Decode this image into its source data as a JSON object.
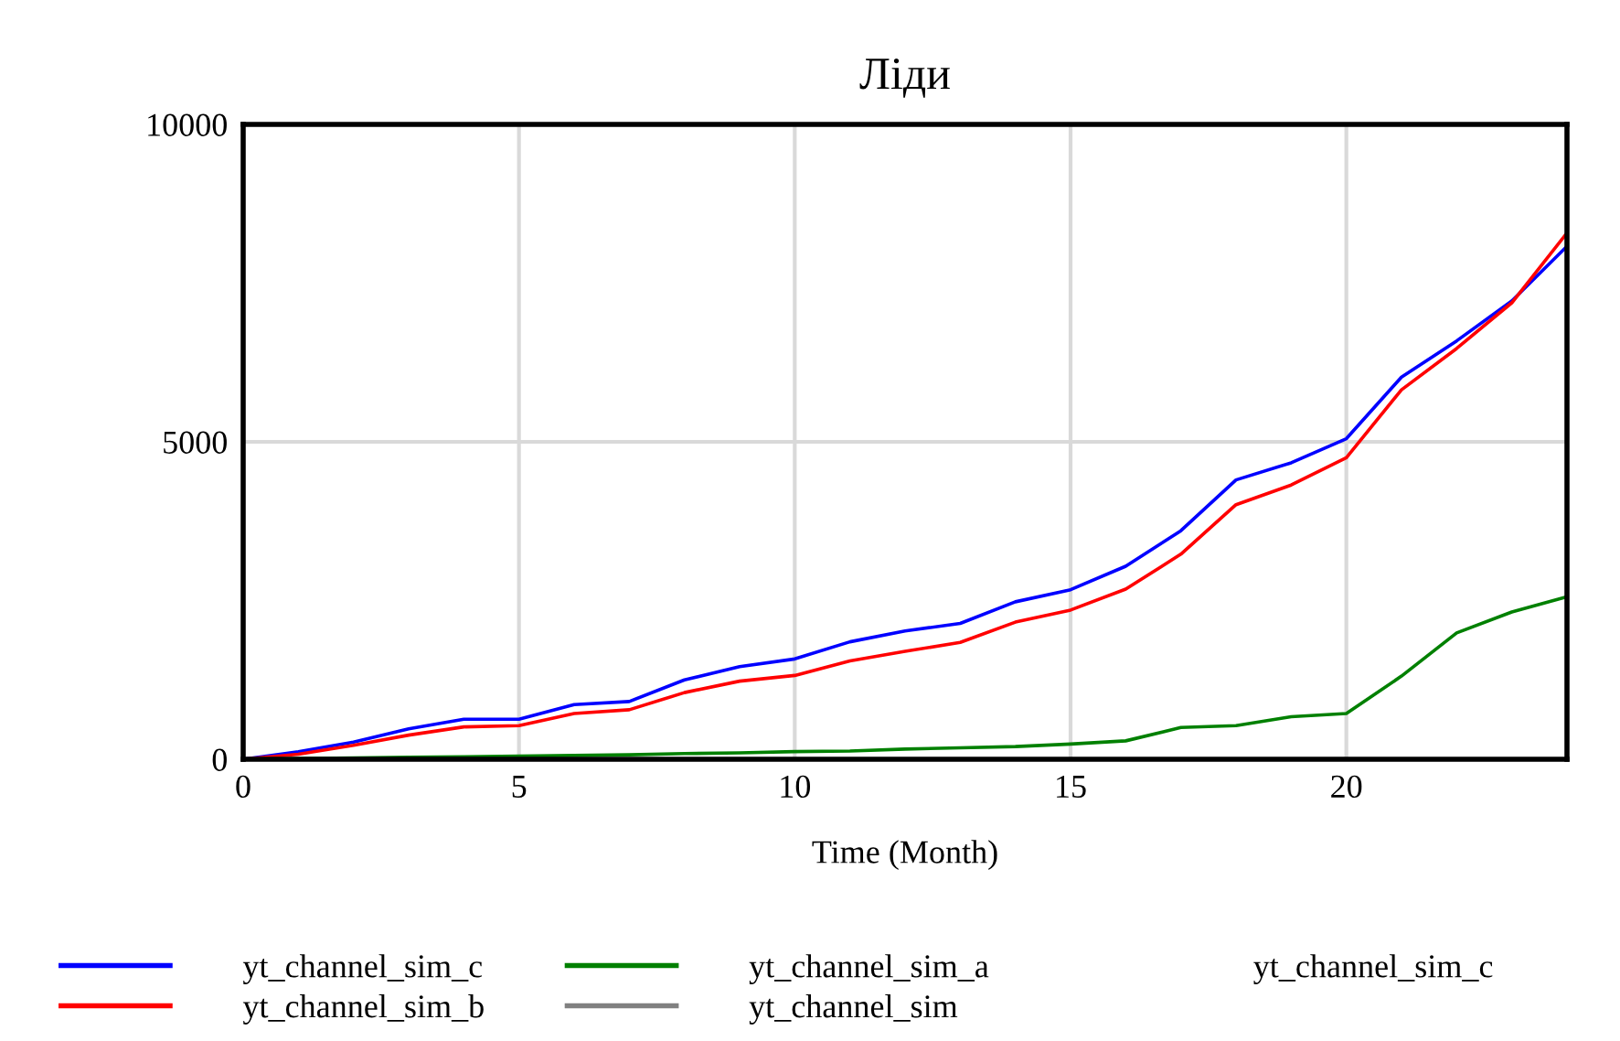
{
  "chart_data": {
    "type": "line",
    "title": "Ліди",
    "xlabel": "Time (Month)",
    "x": [
      0,
      1,
      2,
      3,
      4,
      5,
      6,
      7,
      8,
      9,
      10,
      11,
      12,
      13,
      14,
      15,
      16,
      17,
      18,
      19,
      20,
      21,
      22,
      23,
      24
    ],
    "series": [
      {
        "name": "yt_channel_sim_c",
        "color": "#0000ff",
        "values": [
          0,
          120,
          270,
          480,
          630,
          630,
          860,
          910,
          1250,
          1460,
          1580,
          1850,
          2020,
          2140,
          2480,
          2670,
          3040,
          3600,
          4400,
          4670,
          5050,
          6020,
          6590,
          7220,
          8080
        ]
      },
      {
        "name": "yt_channel_sim_b",
        "color": "#ff0000",
        "values": [
          0,
          80,
          220,
          380,
          510,
          530,
          720,
          780,
          1050,
          1230,
          1320,
          1550,
          1700,
          1840,
          2160,
          2350,
          2680,
          3230,
          4010,
          4320,
          4750,
          5820,
          6470,
          7190,
          8290
        ]
      },
      {
        "name": "yt_channel_sim_a",
        "color": "#008000",
        "values": [
          0,
          10,
          20,
          30,
          40,
          50,
          60,
          70,
          90,
          100,
          120,
          130,
          160,
          180,
          200,
          240,
          290,
          500,
          530,
          670,
          720,
          1310,
          1990,
          2320,
          2560
        ]
      },
      {
        "name": "yt_channel_sim",
        "color": "#808080",
        "values": [
          null,
          null,
          null,
          null,
          null,
          null,
          null,
          null,
          null,
          null,
          null,
          null,
          null,
          null,
          null,
          null,
          null,
          null,
          null,
          null,
          null,
          null,
          null,
          null,
          null
        ]
      },
      {
        "name": "yt_channel_sim_c",
        "values": [
          null,
          null,
          null,
          null,
          null,
          null,
          null,
          null,
          null,
          null,
          null,
          null,
          null,
          null,
          null,
          null,
          null,
          null,
          null,
          null,
          null,
          null,
          null,
          null,
          null
        ]
      }
    ],
    "xlim": [
      0,
      24
    ],
    "ylim": [
      0,
      10000
    ],
    "xticks": [
      0,
      5,
      10,
      15,
      20
    ],
    "yticks": [
      0,
      5000,
      10000
    ],
    "grid": true,
    "legend": "bottom"
  }
}
